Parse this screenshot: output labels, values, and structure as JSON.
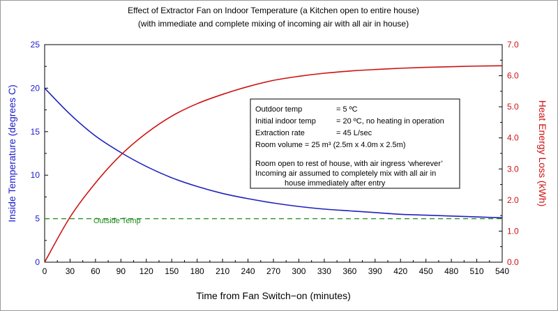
{
  "chart_data": {
    "type": "line",
    "title": "Effect of Extractor Fan on Indoor Temperature (a Kitchen open to entire house)",
    "subtitle": "(with immediate and complete mixing of incoming air with all air in house)",
    "xlabel": "Time from Fan Switch−on (minutes)",
    "ylabel_left": "Inside Temperature (degrees C)",
    "ylabel_right": "Heat Energy Loss (kWh)",
    "xlim": [
      0,
      540
    ],
    "ylim_left": [
      0,
      25
    ],
    "ylim_right": [
      0,
      7
    ],
    "x_ticks": [
      "0",
      "30",
      "60",
      "90",
      "120",
      "150",
      "180",
      "210",
      "240",
      "270",
      "300",
      "330",
      "360",
      "390",
      "420",
      "450",
      "480",
      "510",
      "540"
    ],
    "y_left_ticks": [
      "0",
      "5",
      "10",
      "15",
      "20",
      "25"
    ],
    "y_right_ticks": [
      "0.0",
      "1.0",
      "2.0",
      "3.0",
      "4.0",
      "5.0",
      "6.0",
      "7.0"
    ],
    "grid": false,
    "colors": {
      "temperature": "#1f1fbf",
      "energy": "#cc1111",
      "outside": "#1a8a1a",
      "axis_left": "#1a1acc",
      "axis_right": "#cc1111"
    },
    "series": [
      {
        "axis": "left",
        "x": [
          0,
          30,
          60,
          90,
          120,
          150,
          180,
          210,
          240,
          270,
          300,
          330,
          360,
          390,
          420,
          450,
          480,
          510,
          540
        ],
        "values": [
          20.0,
          17.0,
          14.5,
          12.6,
          11.0,
          9.7,
          8.7,
          7.9,
          7.3,
          6.8,
          6.4,
          6.1,
          5.9,
          5.7,
          5.5,
          5.4,
          5.3,
          5.2,
          5.1
        ]
      },
      {
        "axis": "right",
        "x": [
          0,
          30,
          60,
          90,
          120,
          150,
          180,
          210,
          240,
          270,
          300,
          330,
          360,
          390,
          420,
          450,
          480,
          510,
          540
        ],
        "values": [
          0.0,
          1.45,
          2.55,
          3.45,
          4.15,
          4.7,
          5.1,
          5.4,
          5.65,
          5.85,
          5.98,
          6.08,
          6.15,
          6.2,
          6.24,
          6.27,
          6.29,
          6.31,
          6.32
        ]
      },
      {
        "name": "Outside Temp",
        "axis": "left",
        "style": "dashed",
        "x": [
          0,
          540
        ],
        "values": [
          5,
          5
        ]
      }
    ],
    "annotations": {
      "outside_label": "Outside Temp",
      "box_lines": [
        {
          "label": "Outdoor temp",
          "value": "= 5 ºC"
        },
        {
          "label": "Initial indoor temp",
          "value": "= 20 ºC,  no heating in operation"
        },
        {
          "label": "Extraction rate",
          "value": "= 45 L/sec"
        },
        {
          "label": "Room volume = 25  m³  (2.5m x 4.0m x 2.5m)",
          "value": ""
        }
      ],
      "box_notes": [
        "Room open to rest of house, with air ingress ‘wherever’",
        "Incoming air assumed to completely mix with all air in",
        "house  immediately after entry"
      ]
    }
  }
}
